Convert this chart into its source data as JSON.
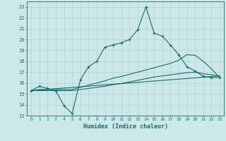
{
  "xlabel": "Humidex (Indice chaleur)",
  "bg_color": "#cce8e8",
  "line_color": "#1a6b6b",
  "grid_color": "#aacccc",
  "xlim": [
    -0.5,
    23.5
  ],
  "ylim": [
    13,
    23.5
  ],
  "xticks": [
    0,
    1,
    2,
    3,
    4,
    5,
    6,
    7,
    8,
    9,
    10,
    11,
    12,
    13,
    14,
    15,
    16,
    17,
    18,
    19,
    20,
    21,
    22,
    23
  ],
  "yticks": [
    13,
    14,
    15,
    16,
    17,
    18,
    19,
    20,
    21,
    22,
    23
  ],
  "line1_x": [
    0,
    1,
    2,
    3,
    4,
    5,
    6,
    7,
    8,
    9,
    10,
    11,
    12,
    13,
    14,
    15,
    16,
    17,
    18,
    19,
    20,
    21,
    22,
    23
  ],
  "line1_y": [
    15.3,
    15.7,
    15.5,
    15.3,
    13.9,
    13.2,
    16.3,
    17.5,
    18.0,
    19.3,
    19.5,
    19.7,
    20.0,
    20.9,
    23.0,
    20.6,
    20.3,
    19.5,
    18.6,
    17.5,
    17.1,
    16.6,
    16.5,
    16.5
  ],
  "line2_x": [
    0,
    1,
    2,
    3,
    4,
    5,
    6,
    7,
    8,
    9,
    10,
    11,
    12,
    13,
    14,
    15,
    16,
    17,
    18,
    19,
    20,
    21,
    22,
    23
  ],
  "line2_y": [
    15.3,
    15.3,
    15.3,
    15.3,
    15.3,
    15.3,
    15.4,
    15.5,
    15.6,
    15.7,
    15.85,
    15.95,
    16.1,
    16.25,
    16.4,
    16.55,
    16.65,
    16.75,
    16.85,
    16.95,
    17.0,
    16.85,
    16.75,
    16.65
  ],
  "line3_x": [
    0,
    1,
    2,
    3,
    4,
    5,
    6,
    7,
    8,
    9,
    10,
    11,
    12,
    13,
    14,
    15,
    16,
    17,
    18,
    19,
    20,
    21,
    22,
    23
  ],
  "line3_y": [
    15.3,
    15.4,
    15.4,
    15.4,
    15.4,
    15.4,
    15.6,
    15.8,
    16.0,
    16.2,
    16.45,
    16.6,
    16.8,
    17.0,
    17.2,
    17.4,
    17.6,
    17.8,
    18.1,
    18.6,
    18.55,
    18.0,
    17.3,
    16.5
  ],
  "line4_x": [
    0,
    23
  ],
  "line4_y": [
    15.3,
    16.65
  ]
}
